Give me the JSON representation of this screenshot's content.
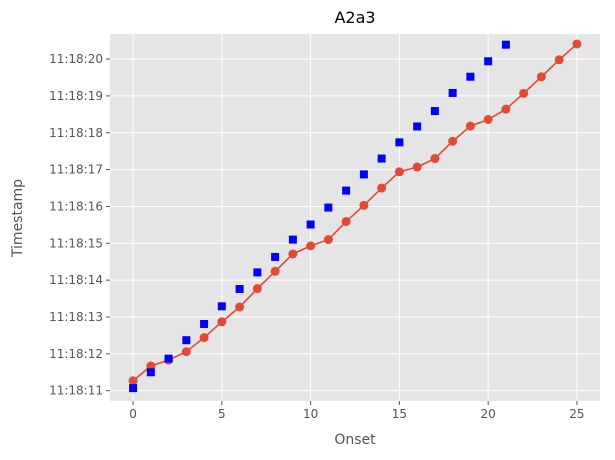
{
  "chart_data": {
    "type": "scatter",
    "title": "A2a3",
    "xlabel": "Onset",
    "ylabel": "Timestamp",
    "xlim": [
      -1.3,
      26.3
    ],
    "ylim": [
      "11:18:10.72",
      "11:18:20.68"
    ],
    "xticks": [
      0,
      5,
      10,
      15,
      20,
      25
    ],
    "yticks": [
      "11:18:11",
      "11:18:12",
      "11:18:13",
      "11:18:14",
      "11:18:15",
      "11:18:16",
      "11:18:17",
      "11:18:18",
      "11:18:19",
      "11:18:20"
    ],
    "grid": true,
    "legend": "none",
    "series": [
      {
        "style": "line-circle",
        "color": "#E24A33",
        "x": [
          0,
          1,
          2,
          3,
          4,
          5,
          6,
          7,
          8,
          9,
          10,
          11,
          12,
          13,
          14,
          15,
          16,
          17,
          18,
          19,
          20,
          21,
          22,
          23,
          24,
          25
        ],
        "y": [
          "11:18:11.27",
          "11:18:11.67",
          "11:18:11.83",
          "11:18:12.06",
          "11:18:12.44",
          "11:18:12.87",
          "11:18:13.27",
          "11:18:13.77",
          "11:18:14.24",
          "11:18:14.71",
          "11:18:14.93",
          "11:18:15.10",
          "11:18:15.59",
          "11:18:16.03",
          "11:18:16.50",
          "11:18:16.94",
          "11:18:17.07",
          "11:18:17.30",
          "11:18:17.77",
          "11:18:18.18",
          "11:18:18.36",
          "11:18:18.64",
          "11:18:19.07",
          "11:18:19.52",
          "11:18:19.98",
          "11:18:20.41"
        ]
      },
      {
        "style": "square",
        "color": "#0000FF",
        "x": [
          0,
          1,
          2,
          3,
          4,
          5,
          6,
          7,
          8,
          9,
          10,
          11,
          12,
          13,
          14,
          15,
          16,
          17,
          18,
          19,
          20,
          21
        ],
        "y": [
          "11:18:11.07",
          "11:18:11.50",
          "11:18:11.87",
          "11:18:12.37",
          "11:18:12.81",
          "11:18:13.29",
          "11:18:13.76",
          "11:18:14.21",
          "11:18:14.63",
          "11:18:15.10",
          "11:18:15.51",
          "11:18:15.97",
          "11:18:16.43",
          "11:18:16.87",
          "11:18:17.30",
          "11:18:17.74",
          "11:18:18.17",
          "11:18:18.59",
          "11:18:19.08",
          "11:18:19.52",
          "11:18:19.94",
          "11:18:20.39"
        ]
      }
    ]
  }
}
